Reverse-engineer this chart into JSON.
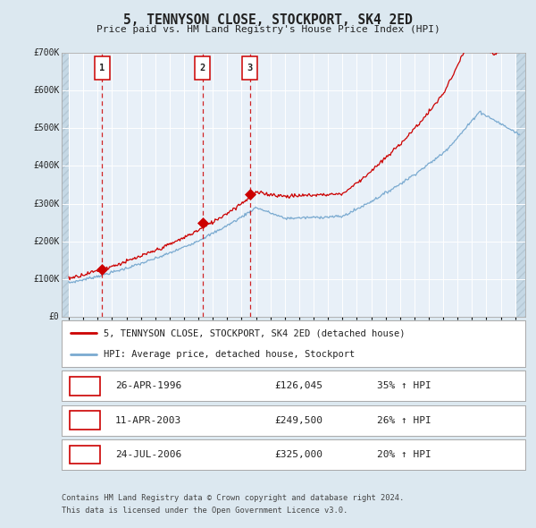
{
  "title": "5, TENNYSON CLOSE, STOCKPORT, SK4 2ED",
  "subtitle": "Price paid vs. HM Land Registry's House Price Index (HPI)",
  "purchases": [
    {
      "date_num": 1996.32,
      "price": 126045,
      "label": "1"
    },
    {
      "date_num": 2003.28,
      "price": 249500,
      "label": "2"
    },
    {
      "date_num": 2006.56,
      "price": 325000,
      "label": "3"
    }
  ],
  "purchase_dates_str": [
    "26-APR-1996",
    "11-APR-2003",
    "24-JUL-2006"
  ],
  "purchase_prices_str": [
    "£126,045",
    "£249,500",
    "£325,000"
  ],
  "purchase_pct": [
    "35%",
    "26%",
    "20%"
  ],
  "legend_line1": "5, TENNYSON CLOSE, STOCKPORT, SK4 2ED (detached house)",
  "legend_line2": "HPI: Average price, detached house, Stockport",
  "footer_line1": "Contains HM Land Registry data © Crown copyright and database right 2024.",
  "footer_line2": "This data is licensed under the Open Government Licence v3.0.",
  "red_color": "#cc0000",
  "blue_color": "#7aaad0",
  "bg_color": "#dce8f0",
  "plot_bg": "#e8f0f8",
  "grid_color": "#ffffff",
  "ylim": [
    0,
    700000
  ],
  "yticks": [
    0,
    100000,
    200000,
    300000,
    400000,
    500000,
    600000,
    700000
  ],
  "ytick_labels": [
    "£0",
    "£100K",
    "£200K",
    "£300K",
    "£400K",
    "£500K",
    "£600K",
    "£700K"
  ],
  "xmin": 1993.5,
  "xmax": 2025.7
}
